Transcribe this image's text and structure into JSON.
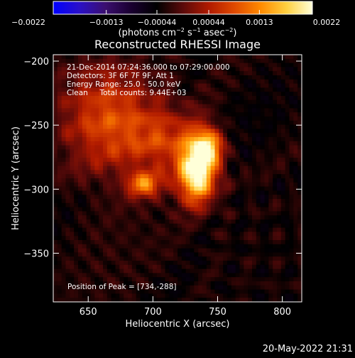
{
  "chart_data": {
    "type": "heatmap",
    "title": "Reconstructed RHESSI Image",
    "xlabel": "Heliocentric X (arcsec)",
    "ylabel": "Heliocentric Y (arcsec)",
    "xlim": [
      623,
      815
    ],
    "ylim": [
      -388,
      -195
    ],
    "x_ticks": [
      {
        "value": 650,
        "label": "650"
      },
      {
        "value": 700,
        "label": "700"
      },
      {
        "value": 750,
        "label": "750"
      },
      {
        "value": 800,
        "label": "800"
      }
    ],
    "y_ticks": [
      {
        "value": -200,
        "label": "−200"
      },
      {
        "value": -250,
        "label": "−250"
      },
      {
        "value": -300,
        "label": "−300"
      },
      {
        "value": -350,
        "label": "−350"
      }
    ],
    "colorbar": {
      "range": [
        -0.0022,
        0.0022
      ],
      "tick_values": [
        -0.0022,
        -0.0013,
        -0.00044,
        0.00044,
        0.0013,
        0.0022
      ],
      "tick_labels": [
        "−0.0022",
        "−0.0013",
        "−0.00044",
        "0.00044",
        "0.0013",
        "0.0022"
      ],
      "units_prefix": "(photons cm",
      "units_exp1": "−2",
      "units_mid": " s",
      "units_exp2": "−1",
      "units_mid2": " asec",
      "units_exp3": "−2",
      "units_suffix": ")",
      "colors": [
        "#0000ff",
        "#2a10c8",
        "#3b0f70",
        "#1a0030",
        "#000000",
        "#5a0a0a",
        "#b01a00",
        "#e04a00",
        "#ff8a00",
        "#ffd040",
        "#ffffd8"
      ]
    },
    "sources": [
      {
        "x": 734,
        "y": -288,
        "peak": 1.0,
        "sx": 10,
        "sy": 16
      },
      {
        "x": 742,
        "y": -268,
        "peak": 0.75,
        "sx": 8,
        "sy": 10
      },
      {
        "x": 693,
        "y": -296,
        "peak": 0.55,
        "sx": 9,
        "sy": 7
      },
      {
        "x": 712,
        "y": -262,
        "peak": 0.35,
        "sx": 22,
        "sy": 18
      },
      {
        "x": 665,
        "y": -245,
        "peak": 0.45,
        "sx": 25,
        "sy": 30
      }
    ],
    "peak_position": [
      734,
      -288
    ],
    "info_lines": [
      "21-Dec-2014 07:24:36.000 to 07:29:00.000",
      "Detectors: 3F 6F 7F 9F, Att 1",
      "Energy Range: 25.0 - 50.0 keV",
      "Clean     Total counts: 9.44E+03"
    ],
    "peak_label": "Position of Peak = [734,-288]"
  },
  "footer": {
    "timestamp": "20-May-2022 21:31"
  }
}
